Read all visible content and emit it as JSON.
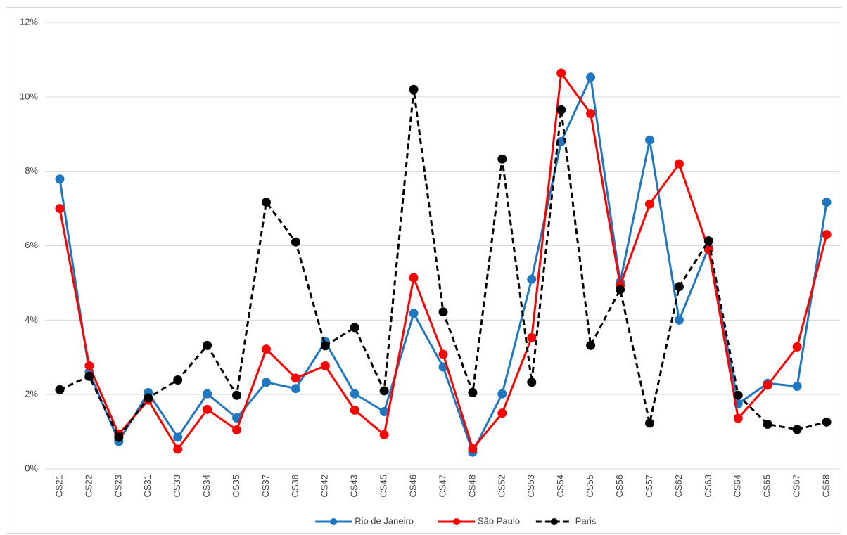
{
  "chart_data": {
    "type": "line",
    "categories": [
      "CS21",
      "CS22",
      "CS23",
      "CS31",
      "CS33",
      "CS34",
      "CS35",
      "CS37",
      "CS38",
      "CS42",
      "CS43",
      "CS45",
      "CS46",
      "CS47",
      "CS48",
      "CS52",
      "CS53",
      "CS54",
      "CS55",
      "CS56",
      "CS57",
      "CS62",
      "CS63",
      "CS64",
      "CS65",
      "CS67",
      "CS68"
    ],
    "series": [
      {
        "name": "Rio de Janeiro",
        "color": "#1f77c0",
        "line_style": "solid",
        "values": [
          7.79,
          2.6,
          0.74,
          2.05,
          0.85,
          2.02,
          1.37,
          2.33,
          2.16,
          3.42,
          2.02,
          1.54,
          4.18,
          2.74,
          0.45,
          2.02,
          5.1,
          8.8,
          10.53,
          5.02,
          8.84,
          4.0,
          5.95,
          1.75,
          2.3,
          2.22,
          7.17
        ]
      },
      {
        "name": "São Paulo",
        "color": "#ff0000",
        "line_style": "solid",
        "values": [
          7.0,
          2.77,
          0.93,
          1.85,
          0.53,
          1.6,
          1.05,
          3.22,
          2.44,
          2.77,
          1.58,
          0.92,
          5.14,
          3.08,
          0.54,
          1.5,
          3.53,
          10.64,
          9.55,
          4.93,
          7.12,
          8.2,
          5.9,
          1.36,
          2.25,
          3.28,
          6.3
        ]
      },
      {
        "name": "Paris",
        "color": "#000000",
        "line_style": "dashed",
        "values": [
          2.13,
          2.49,
          0.85,
          1.91,
          2.39,
          3.32,
          1.98,
          7.17,
          6.1,
          3.31,
          3.8,
          2.1,
          10.2,
          4.22,
          2.05,
          8.33,
          2.33,
          9.65,
          3.32,
          4.82,
          1.23,
          4.9,
          6.13,
          1.98,
          1.2,
          1.06,
          1.26
        ]
      }
    ],
    "ylim": [
      0,
      12
    ],
    "yticks": [
      {
        "value": 0,
        "label": "0%"
      },
      {
        "value": 2,
        "label": "2%"
      },
      {
        "value": 4,
        "label": "4%"
      },
      {
        "value": 6,
        "label": "6%"
      },
      {
        "value": 8,
        "label": "8%"
      },
      {
        "value": 10,
        "label": "10%"
      },
      {
        "value": 12,
        "label": "12%"
      }
    ],
    "grid": true,
    "legend": "bottom"
  }
}
